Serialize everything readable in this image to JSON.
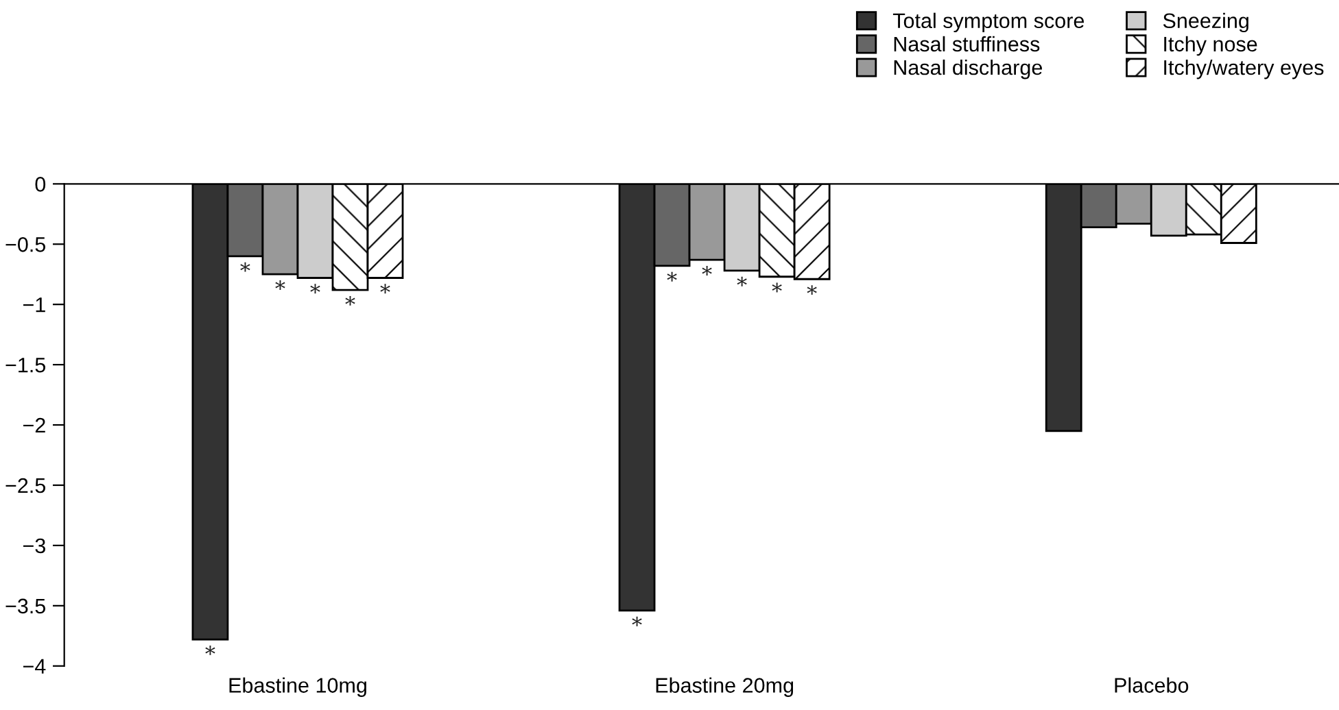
{
  "chart_data": {
    "type": "bar",
    "categories": [
      "Ebastine 10mg",
      "Ebastine 20mg",
      "Placebo"
    ],
    "series": [
      {
        "name": "Total symptom score",
        "color": "#333333",
        "values": [
          -3.78,
          -3.54,
          -2.05
        ]
      },
      {
        "name": "Nasal stuffiness",
        "color": "#666666",
        "values": [
          -0.6,
          -0.68,
          -0.36
        ]
      },
      {
        "name": "Nasal discharge",
        "color": "#999999",
        "values": [
          -0.75,
          -0.63,
          -0.33
        ]
      },
      {
        "name": "Sneezing",
        "color": "#cccccc",
        "values": [
          -0.78,
          -0.72,
          -0.43
        ]
      },
      {
        "name": "Itchy nose",
        "color": "#ffffff",
        "values": [
          -0.88,
          -0.77,
          -0.42
        ]
      },
      {
        "name": "Itchy/watery eyes",
        "color": "#ffffff",
        "values": [
          -0.78,
          -0.79,
          -0.49
        ]
      }
    ],
    "ylim": [
      -4,
      0
    ],
    "yticks": [
      0,
      -0.5,
      -1,
      -1.5,
      -2,
      -2.5,
      -3,
      -3.5,
      -4
    ],
    "grid": false,
    "legend": "top right",
    "annotations": [
      "*",
      "*",
      "*",
      "*",
      "*",
      "*",
      "*",
      "*",
      "*",
      "*",
      "*",
      "*"
    ]
  }
}
